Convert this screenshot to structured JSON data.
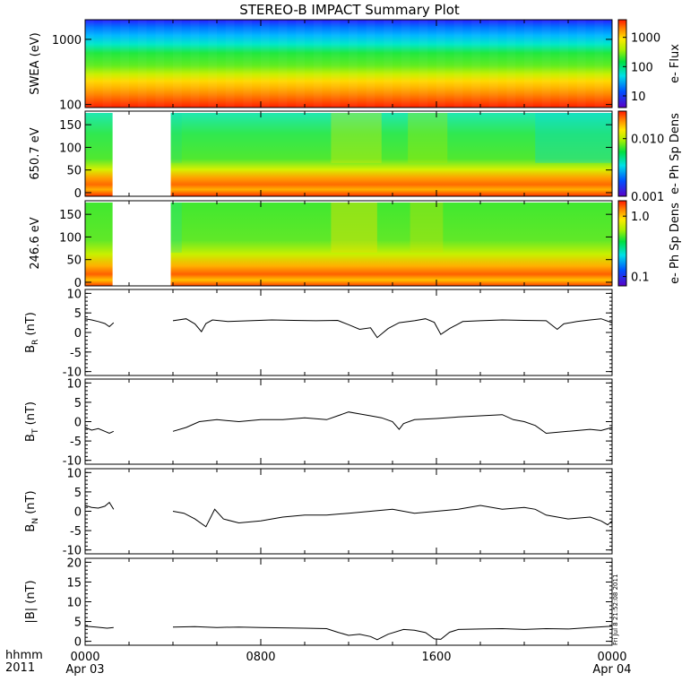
{
  "title": "STEREO-B IMPACT Summary Plot",
  "corner_labels": {
    "time_label": "hhmm",
    "year_label": "2011"
  },
  "x_ticks": [
    {
      "t": 0,
      "label": "0000",
      "sublabel": "Apr 03"
    },
    {
      "t": 8,
      "label": "0800",
      "sublabel": ""
    },
    {
      "t": 16,
      "label": "1600",
      "sublabel": ""
    },
    {
      "t": 24,
      "label": "0000",
      "sublabel": "Apr 04"
    }
  ],
  "stamp": "Fri Jul  8 21:52:08 2011",
  "chart_data": [
    {
      "type": "heatmap",
      "panel": "swea",
      "ylabel": "SWEA (eV)",
      "yscale": "log",
      "ylim": [
        90,
        2000
      ],
      "ytick_labels": [
        "1000",
        "100"
      ],
      "ytick_values": [
        1000,
        100
      ],
      "colorbar": {
        "label": "e- Flux",
        "scale": "log",
        "range": [
          4,
          4000
        ],
        "tick_labels": [
          "1000",
          "100",
          "10"
        ],
        "tick_values": [
          1000,
          100,
          10
        ]
      }
    },
    {
      "type": "heatmap",
      "panel": "pad650",
      "ylabel": "650.7 eV",
      "ylim": [
        -8,
        180
      ],
      "ytick_labels": [
        "150",
        "100",
        "50",
        "0"
      ],
      "ytick_values": [
        150,
        100,
        50,
        0
      ],
      "data_gap": [
        1.25,
        3.9
      ],
      "colorbar": {
        "label": "e- Ph Sp Dens",
        "scale": "log",
        "range": [
          0.001,
          0.03
        ],
        "tick_labels": [
          "0.010",
          "0.001"
        ],
        "tick_values": [
          0.01,
          0.001
        ]
      }
    },
    {
      "type": "heatmap",
      "panel": "pad246",
      "ylabel": "246.6 eV",
      "ylim": [
        -8,
        180
      ],
      "ytick_labels": [
        "150",
        "100",
        "50",
        "0"
      ],
      "ytick_values": [
        150,
        100,
        50,
        0
      ],
      "data_gap": [
        1.25,
        3.9
      ],
      "colorbar": {
        "label": "e- Ph Sp Dens",
        "scale": "log",
        "range": [
          0.07,
          1.8
        ],
        "tick_labels": [
          "1.0",
          "0.1"
        ],
        "tick_values": [
          1.0,
          0.1
        ]
      }
    },
    {
      "type": "line",
      "panel": "br",
      "ylabel": "B",
      "ylabel_sub": "R",
      "ylabel_unit": "(nT)",
      "ylim": [
        -11,
        11
      ],
      "ytick_labels": [
        "10",
        "5",
        "0",
        "-5",
        "-10"
      ],
      "ytick_values": [
        10,
        5,
        0,
        -5,
        -10
      ],
      "x": [
        0,
        0.3,
        0.6,
        0.9,
        1.1,
        1.3,
        4.0,
        4.6,
        5.0,
        5.3,
        5.5,
        5.8,
        6.5,
        7.5,
        8.5,
        9.5,
        10.5,
        11.5,
        12.0,
        12.5,
        13.0,
        13.3,
        13.8,
        14.3,
        15.0,
        15.5,
        15.9,
        16.2,
        16.6,
        17.2,
        18.0,
        19.0,
        20.0,
        21.0,
        21.5,
        21.8,
        22.4,
        23.0,
        23.5,
        24.0
      ],
      "y": [
        3.5,
        3.2,
        2.8,
        2.3,
        1.5,
        2.5,
        3.0,
        3.5,
        2.2,
        0.2,
        2.3,
        3.2,
        2.8,
        3.0,
        3.2,
        3.1,
        3.0,
        3.1,
        2.0,
        0.8,
        1.2,
        -1.3,
        1.0,
        2.5,
        3.0,
        3.5,
        2.6,
        -0.5,
        1.0,
        2.8,
        3.0,
        3.2,
        3.1,
        3.0,
        0.8,
        2.2,
        2.8,
        3.2,
        3.5,
        2.5
      ],
      "gap_after_x": 1.3
    },
    {
      "type": "line",
      "panel": "bt",
      "ylabel": "B",
      "ylabel_sub": "T",
      "ylabel_unit": "(nT)",
      "ylim": [
        -11,
        11
      ],
      "ytick_labels": [
        "10",
        "5",
        "0",
        "-5",
        "-10"
      ],
      "ytick_values": [
        10,
        5,
        0,
        -5,
        -10
      ],
      "x": [
        0,
        0.3,
        0.6,
        0.9,
        1.1,
        1.3,
        4.0,
        4.6,
        5.2,
        6.0,
        7.0,
        8.0,
        9.0,
        10.0,
        11.0,
        11.5,
        12.0,
        12.5,
        13.0,
        13.5,
        14.0,
        14.3,
        14.5,
        15.0,
        16.0,
        17.0,
        18.0,
        19.0,
        19.5,
        20.0,
        20.5,
        21.0,
        22.0,
        23.0,
        23.5,
        24.0
      ],
      "y": [
        -1.5,
        -2.2,
        -1.8,
        -2.5,
        -3.0,
        -2.5,
        -2.5,
        -1.5,
        0.0,
        0.5,
        0.0,
        0.5,
        0.5,
        1.0,
        0.5,
        1.5,
        2.5,
        2.0,
        1.5,
        1.0,
        0.0,
        -2.0,
        -0.5,
        0.5,
        0.8,
        1.2,
        1.5,
        1.8,
        0.5,
        0.0,
        -1.0,
        -3.0,
        -2.5,
        -2.0,
        -2.3,
        -1.5
      ],
      "gap_after_x": 1.3
    },
    {
      "type": "line",
      "panel": "bn",
      "ylabel": "B",
      "ylabel_sub": "N",
      "ylabel_unit": "(nT)",
      "ylim": [
        -11,
        11
      ],
      "ytick_labels": [
        "10",
        "5",
        "0",
        "-5",
        "-10"
      ],
      "ytick_values": [
        10,
        5,
        0,
        -5,
        -10
      ],
      "x": [
        0,
        0.3,
        0.6,
        0.9,
        1.1,
        1.3,
        4.0,
        4.5,
        5.0,
        5.5,
        5.9,
        6.3,
        7.0,
        8.0,
        9.0,
        10.0,
        11.0,
        12.0,
        13.0,
        14.0,
        15.0,
        16.0,
        17.0,
        18.0,
        19.0,
        20.0,
        20.5,
        21.0,
        22.0,
        23.0,
        23.5,
        23.8,
        24.0
      ],
      "y": [
        1.5,
        1.0,
        0.8,
        1.3,
        2.3,
        0.5,
        0.0,
        -0.5,
        -2.0,
        -4.0,
        0.5,
        -2.0,
        -3.0,
        -2.5,
        -1.5,
        -1.0,
        -1.0,
        -0.5,
        0.0,
        0.5,
        -0.5,
        0.0,
        0.5,
        1.5,
        0.5,
        1.0,
        0.5,
        -1.0,
        -2.0,
        -1.5,
        -2.5,
        -3.5,
        -2.5
      ],
      "gap_after_x": 1.3
    },
    {
      "type": "line",
      "panel": "btot",
      "ylabel": "|B| (nT)",
      "ylim": [
        -1,
        21
      ],
      "ytick_labels": [
        "20",
        "15",
        "10",
        "5",
        "0"
      ],
      "ytick_values": [
        20,
        15,
        10,
        5,
        0
      ],
      "x": [
        0,
        0.5,
        1.0,
        1.3,
        4.0,
        5.0,
        6.0,
        7.0,
        8.0,
        9.0,
        10.0,
        11.0,
        11.5,
        12.0,
        12.5,
        13.0,
        13.3,
        13.8,
        14.5,
        15.0,
        15.5,
        15.9,
        16.2,
        16.6,
        17.0,
        18.0,
        19.0,
        20.0,
        21.0,
        22.0,
        23.0,
        24.0
      ],
      "y": [
        3.8,
        3.6,
        3.3,
        3.5,
        3.6,
        3.7,
        3.5,
        3.6,
        3.5,
        3.4,
        3.3,
        3.2,
        2.3,
        1.5,
        1.8,
        1.2,
        0.4,
        1.8,
        3.0,
        2.8,
        2.2,
        0.6,
        0.5,
        2.3,
        3.0,
        3.1,
        3.2,
        3.0,
        3.2,
        3.1,
        3.5,
        3.8
      ],
      "gap_after_x": 1.3
    }
  ]
}
